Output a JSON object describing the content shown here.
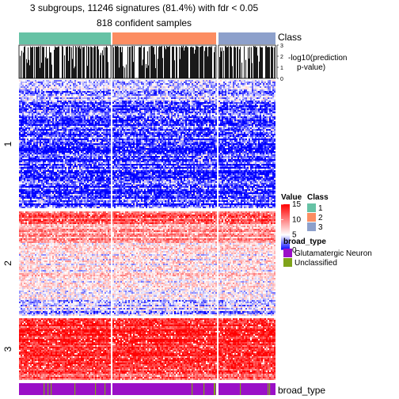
{
  "chart_data": {
    "type": "heatmap",
    "title": "3 subgroups, 11246 signatures (81.4%) with fdr < 0.05",
    "subtitle": "818 confident samples",
    "column_groups": [
      {
        "label": "1",
        "color": "#66c2a5"
      },
      {
        "label": "2",
        "color": "#fc8d62"
      },
      {
        "label": "3",
        "color": "#8da0cb"
      }
    ],
    "row_groups": [
      {
        "label": "1",
        "pattern": "low"
      },
      {
        "label": "2",
        "pattern": "mid"
      },
      {
        "label": "3",
        "pattern": "high"
      }
    ],
    "class_annotation": {
      "name": "Class"
    },
    "prediction_annotation": {
      "name_lines": [
        "-log10(prediction",
        "p-value)"
      ],
      "ticks": [
        "0",
        "1",
        "2",
        "3"
      ],
      "axis_max": 3
    },
    "bottom_annotation": {
      "name": "broad_type"
    },
    "legends": {
      "value": {
        "title": "Value",
        "ticks": [
          "0",
          "5",
          "10",
          "15"
        ],
        "range": [
          0,
          15
        ],
        "colors": [
          "#0000ff",
          "#ffffff",
          "#ff0000"
        ]
      },
      "class": {
        "title": "Class",
        "entries": [
          {
            "label": "1",
            "color": "#66c2a5"
          },
          {
            "label": "2",
            "color": "#fc8d62"
          },
          {
            "label": "3",
            "color": "#8da0cb"
          }
        ]
      },
      "broad_type": {
        "title": "broad_type",
        "entries": [
          {
            "label": "Glutamatergic Neuron",
            "color": "#9a0fc7"
          },
          {
            "label": "Unclassified",
            "color": "#7fa31a"
          }
        ]
      }
    }
  }
}
